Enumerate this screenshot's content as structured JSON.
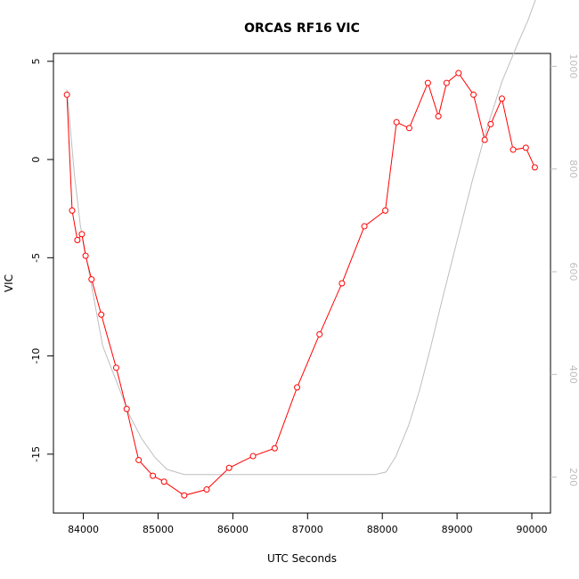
{
  "chart_data": {
    "type": "line",
    "title": "ORCAS RF16 VIC",
    "xlabel": "UTC Seconds",
    "ylabel": "VIC",
    "xlim": [
      83600,
      90250
    ],
    "ylim": [
      -18,
      5.4
    ],
    "y2lim": [
      1025,
      130
    ],
    "x_ticks": [
      84000,
      85000,
      86000,
      87000,
      88000,
      89000,
      90000
    ],
    "y_ticks": [
      5,
      0,
      -5,
      -10,
      -15
    ],
    "y2_ticks": [
      200,
      400,
      600,
      800,
      1000
    ],
    "grid": false,
    "colors": {
      "vic": "#ff0000",
      "secondary": "#bebebe"
    },
    "series": [
      {
        "axis": "left",
        "style": "line-points",
        "x": [
          83780,
          83850,
          83920,
          83980,
          84030,
          84110,
          84240,
          84440,
          84580,
          84740,
          84930,
          85080,
          85350,
          85650,
          85950,
          86270,
          86560,
          86860,
          87160,
          87460,
          87760,
          88040,
          88190,
          88360,
          88610,
          88750,
          88860,
          89020,
          89220,
          89370,
          89450,
          89600,
          89750,
          89920,
          90040
        ],
        "values": [
          3.3,
          -2.6,
          -4.1,
          -3.8,
          -4.9,
          -6.1,
          -7.9,
          -10.6,
          -12.7,
          -15.3,
          -16.1,
          -16.4,
          -17.1,
          -16.8,
          -15.7,
          -15.1,
          -14.7,
          -11.6,
          -8.9,
          -6.3,
          -3.4,
          -2.6,
          1.9,
          1.6,
          3.9,
          2.2,
          3.9,
          4.4,
          3.3,
          1.0,
          1.8,
          3.1,
          0.5,
          0.6,
          -0.4
        ]
      },
      {
        "axis": "right",
        "style": "line",
        "x": [
          83780,
          83880,
          83960,
          84100,
          84260,
          84460,
          84620,
          84780,
          84960,
          85120,
          85350,
          85700,
          86000,
          86500,
          87000,
          87500,
          87900,
          88050,
          88180,
          88350,
          88500,
          88650,
          88800,
          89000,
          89200,
          89400,
          89600,
          89800,
          89950,
          90050
        ],
        "values": [
          955,
          790,
          690,
          580,
          455,
          380,
          320,
          275,
          238,
          215,
          205,
          205,
          205,
          205,
          205,
          205,
          205,
          210,
          240,
          300,
          370,
          455,
          545,
          660,
          775,
          880,
          970,
          1040,
          1090,
          1130
        ]
      }
    ]
  }
}
